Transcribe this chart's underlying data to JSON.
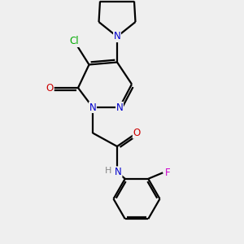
{
  "background_color": "#efefef",
  "bond_color": "#000000",
  "atom_colors": {
    "N": "#0000cc",
    "O": "#cc0000",
    "Cl": "#00aa00",
    "F": "#cc00cc",
    "C": "#000000",
    "H": "#888888"
  },
  "figsize": [
    3.0,
    3.0
  ],
  "dpi": 100,
  "lw": 1.6,
  "fontsize": 8.5
}
